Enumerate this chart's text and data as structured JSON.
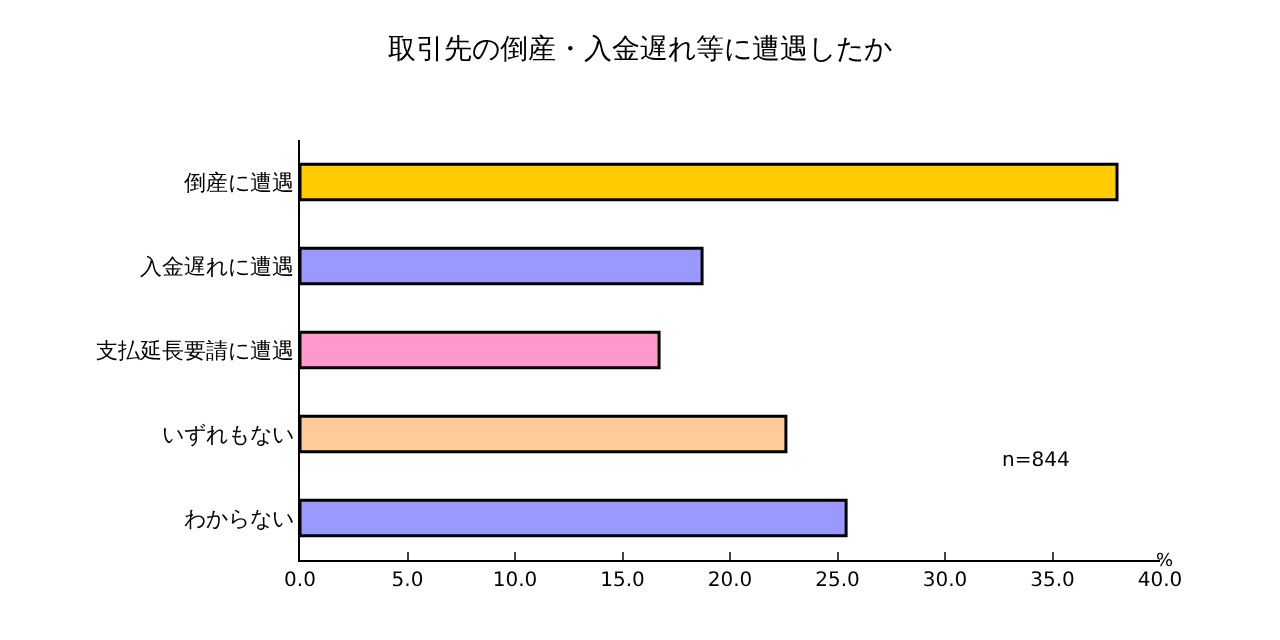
{
  "chart_data": {
    "type": "bar",
    "orientation": "horizontal",
    "title": "取引先の倒産・入金遅れ等に遭遇したか",
    "categories": [
      "倒産に遭遇",
      "入金遅れに遭遇",
      "支払延長要請に遭遇",
      "いずれもない",
      "わからない"
    ],
    "values": [
      38.0,
      18.7,
      16.7,
      22.6,
      25.4
    ],
    "colors": [
      "#ffcc00",
      "#9999ff",
      "#ff99cc",
      "#ffcc99",
      "#9999ff"
    ],
    "xlim": [
      0,
      40
    ],
    "xticks": [
      {
        "value": 0,
        "label": "0.0"
      },
      {
        "value": 5,
        "label": "5.0"
      },
      {
        "value": 10,
        "label": "10.0"
      },
      {
        "value": 15,
        "label": "15.0"
      },
      {
        "value": 20,
        "label": "20.0"
      },
      {
        "value": 25,
        "label": "25.0"
      },
      {
        "value": 30,
        "label": "30.0"
      },
      {
        "value": 35,
        "label": "35.0"
      },
      {
        "value": 40,
        "label": "40.0"
      }
    ],
    "xlabel": "%",
    "annotations": [
      "n=844"
    ],
    "grid": false,
    "legend": false
  }
}
